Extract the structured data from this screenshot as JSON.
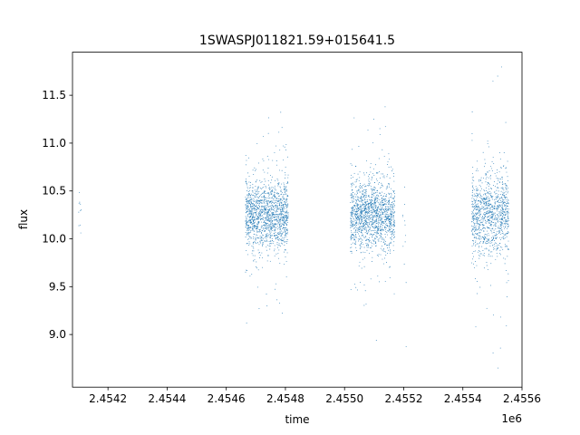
{
  "chart_data": {
    "type": "scatter",
    "title": "1SWASPJ011821.59+015641.5",
    "xlabel": "time",
    "ylabel": "flux",
    "x_offset_label": "1e6",
    "xlim": [
      2454080,
      2455600
    ],
    "ylim": [
      8.45,
      11.95
    ],
    "x_ticks": [
      {
        "value": 2454200,
        "label": "2.4542"
      },
      {
        "value": 2454400,
        "label": "2.4544"
      },
      {
        "value": 2454600,
        "label": "2.4546"
      },
      {
        "value": 2454800,
        "label": "2.4548"
      },
      {
        "value": 2455000,
        "label": "2.4550"
      },
      {
        "value": 2455200,
        "label": "2.4552"
      },
      {
        "value": 2455400,
        "label": "2.4554"
      },
      {
        "value": 2455600,
        "label": "2.4556"
      }
    ],
    "y_ticks": [
      {
        "value": 9.0,
        "label": "9.0"
      },
      {
        "value": 9.5,
        "label": "9.5"
      },
      {
        "value": 10.0,
        "label": "10.0"
      },
      {
        "value": 10.5,
        "label": "10.5"
      },
      {
        "value": 11.0,
        "label": "11.0"
      },
      {
        "value": 11.5,
        "label": "11.5"
      }
    ],
    "grid": false,
    "marker_color": "#1f77b4",
    "clusters": [
      {
        "x_range": [
          2454100,
          2454110
        ],
        "y_center": 10.3,
        "y_spread": 0.3,
        "count": 10
      },
      {
        "x_range": [
          2454665,
          2454810
        ],
        "y_center": 10.25,
        "y_spread": 0.35,
        "count": 1500
      },
      {
        "x_range": [
          2455020,
          2455170
        ],
        "y_center": 10.25,
        "y_spread": 0.35,
        "count": 1500
      },
      {
        "x_range": [
          2455195,
          2455210
        ],
        "y_center": 10.0,
        "y_spread": 0.5,
        "count": 12
      },
      {
        "x_range": [
          2455430,
          2455555
        ],
        "y_center": 10.25,
        "y_spread": 0.4,
        "count": 1100
      }
    ]
  }
}
